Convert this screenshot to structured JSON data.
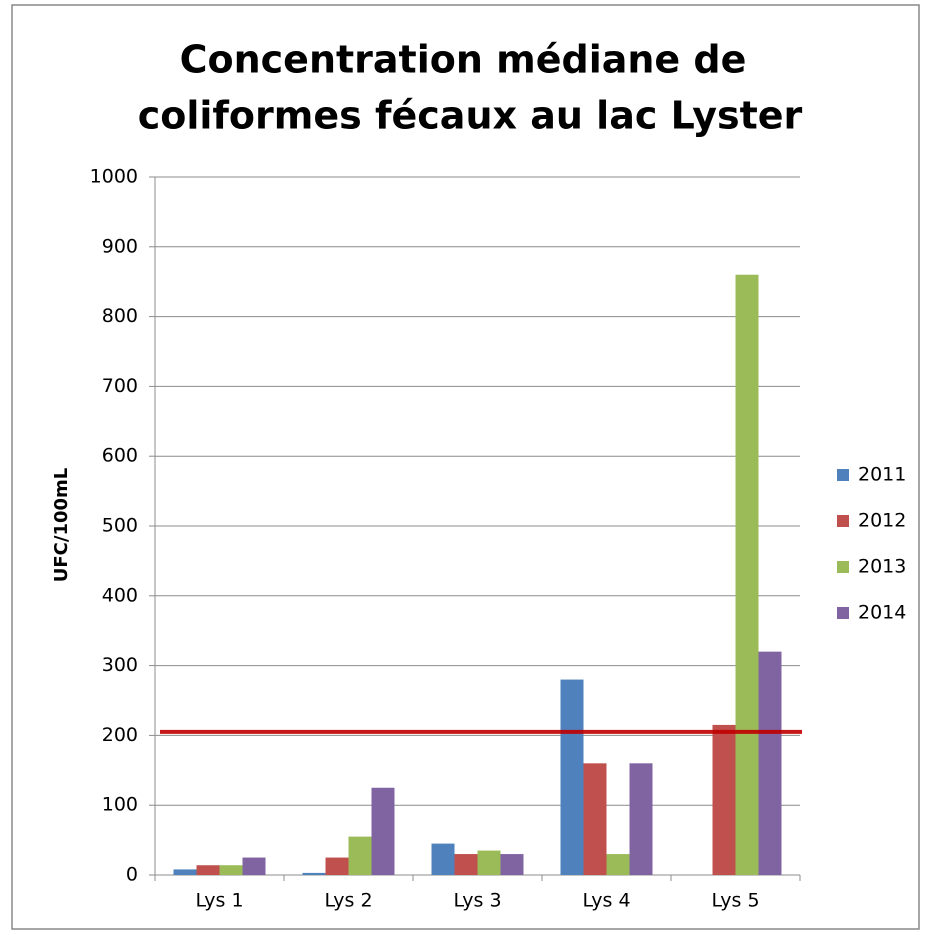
{
  "chart_data": {
    "type": "bar",
    "title": [
      "Concentration médiane de",
      "coliformes fécaux au lac Lyster"
    ],
    "y_label": "UFC/100mL",
    "categories": [
      "Lys 1",
      "Lys 2",
      "Lys 3",
      "Lys 4",
      "Lys 5"
    ],
    "series": [
      {
        "name": "2011",
        "color": "#4f81bd",
        "values": [
          8,
          3,
          45,
          280,
          null
        ]
      },
      {
        "name": "2012",
        "color": "#c0504d",
        "values": [
          14,
          25,
          30,
          160,
          215
        ]
      },
      {
        "name": "2013",
        "color": "#9bbb59",
        "values": [
          14,
          55,
          35,
          30,
          860
        ]
      },
      {
        "name": "2014",
        "color": "#8064a2",
        "values": [
          25,
          125,
          30,
          160,
          320
        ]
      }
    ],
    "reference_line": {
      "value": 205,
      "color": "#c00000"
    },
    "ylim": [
      0,
      1000
    ],
    "yticks": [
      0,
      100,
      200,
      300,
      400,
      500,
      600,
      700,
      800,
      900,
      1000
    ],
    "grid": true,
    "legend": "right"
  }
}
